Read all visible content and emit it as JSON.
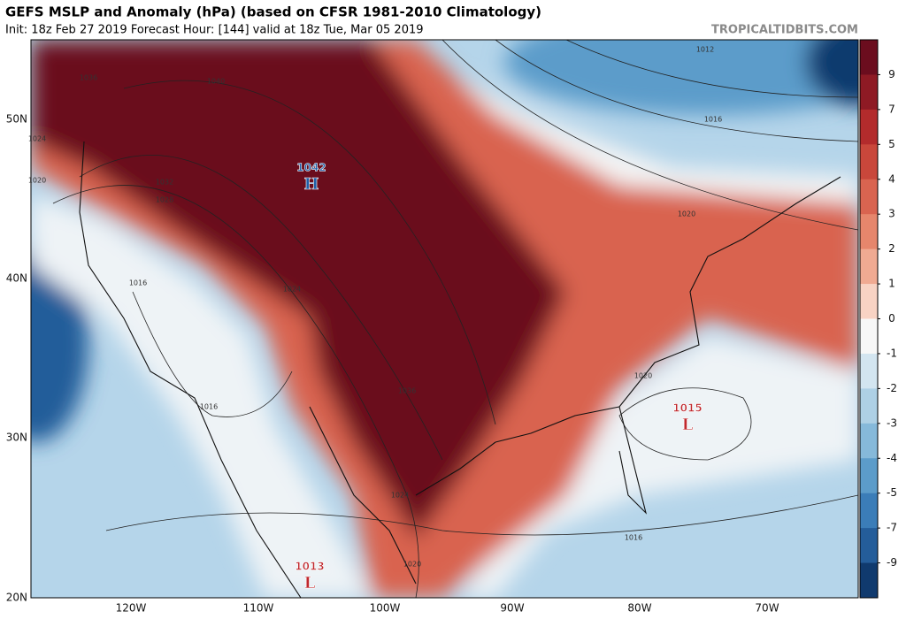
{
  "header": {
    "title": "GEFS MSLP and Anomaly (hPa) (based on CFSR 1981-2010 Climatology)",
    "subtitle": "Init: 18z Feb 27 2019   Forecast Hour: [144]   valid at 18z Tue, Mar 05 2019",
    "site": "TROPICALTIDBITS.COM"
  },
  "map": {
    "lat_labels": [
      "50N",
      "40N",
      "30N",
      "20N"
    ],
    "lon_labels": [
      "120W",
      "110W",
      "100W",
      "90W",
      "80W",
      "70W"
    ],
    "centers": [
      {
        "value": "1042",
        "symbol": "H"
      },
      {
        "value": "1015",
        "symbol": "L"
      },
      {
        "value": "1013",
        "symbol": "L"
      }
    ],
    "contour_labels": [
      "1036",
      "1040",
      "1024",
      "1020",
      "1032",
      "1028",
      "1016",
      "1024",
      "1016",
      "1036",
      "1020",
      "1020",
      "1016",
      "1012",
      "1024",
      "1016",
      "1020"
    ]
  },
  "colorbar": {
    "levels": [
      9,
      7,
      5,
      4,
      3,
      2,
      1,
      0,
      -1,
      -2,
      -3,
      -4,
      -5,
      -7,
      -9
    ],
    "colors": [
      "#6b0d1e",
      "#8e1a24",
      "#b32b2c",
      "#c9473b",
      "#d96450",
      "#e6866c",
      "#f0aa92",
      "#f8d3c4",
      "#f7f7f7",
      "#d3e5f0",
      "#aed0e5",
      "#86b9da",
      "#5c9cca",
      "#3b7db8",
      "#245d9a",
      "#103a6e"
    ]
  }
}
